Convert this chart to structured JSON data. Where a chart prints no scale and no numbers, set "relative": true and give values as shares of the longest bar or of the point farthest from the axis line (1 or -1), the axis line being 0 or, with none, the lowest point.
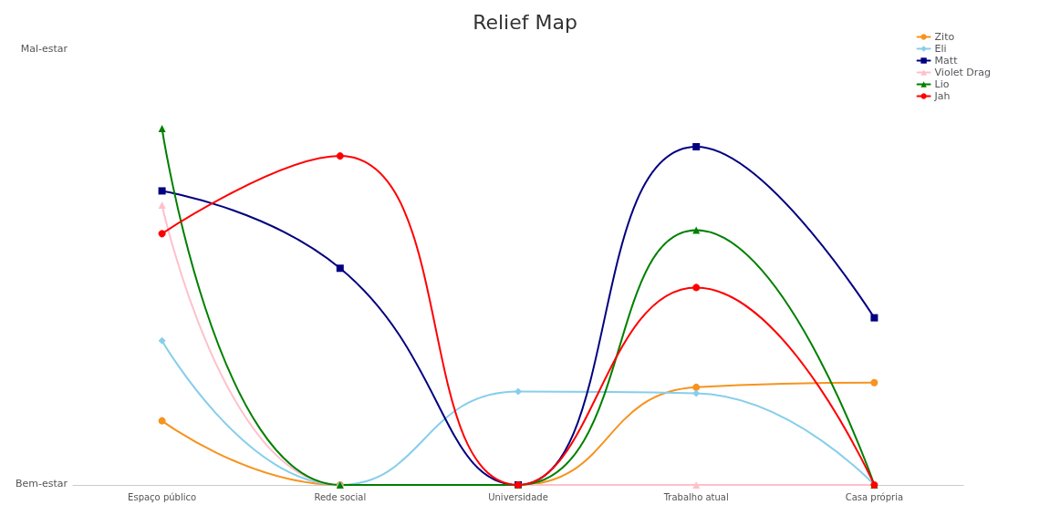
{
  "chart_data": {
    "type": "line",
    "title": "Relief Map",
    "categories": [
      "Espaço público",
      "Rede social",
      "Universidade",
      "Trabalho atual",
      "Casa própria"
    ],
    "relative": true,
    "annotations": [
      "Bem-estar",
      "Mal-estar"
    ],
    "legend": "top right",
    "line_style": "solid",
    "series": [
      {
        "name": "Zito",
        "color": "#f7931e",
        "marker": "circle",
        "values": [
          0.18,
          0,
          0,
          0.274,
          0.287
        ]
      },
      {
        "name": "Eli",
        "color": "#87ceeb",
        "marker": "diamond",
        "values": [
          0.405,
          0,
          0.262,
          0.257,
          0
        ]
      },
      {
        "name": "Matt",
        "color": "#000080",
        "marker": "square",
        "values": [
          0.825,
          0.608,
          0,
          0.949,
          0.469
        ]
      },
      {
        "name": "Violet Drag",
        "color": "#ffc0cb",
        "marker": "triangle",
        "values": [
          0.785,
          0,
          0,
          0,
          0
        ]
      },
      {
        "name": "Lio",
        "color": "#008000",
        "marker": "triangle",
        "values": [
          1,
          0,
          0,
          0.715,
          0
        ]
      },
      {
        "name": "Jah",
        "color": "#ff0000",
        "marker": "circle",
        "values": [
          0.705,
          0.923,
          0,
          0.554,
          0
        ]
      }
    ]
  }
}
